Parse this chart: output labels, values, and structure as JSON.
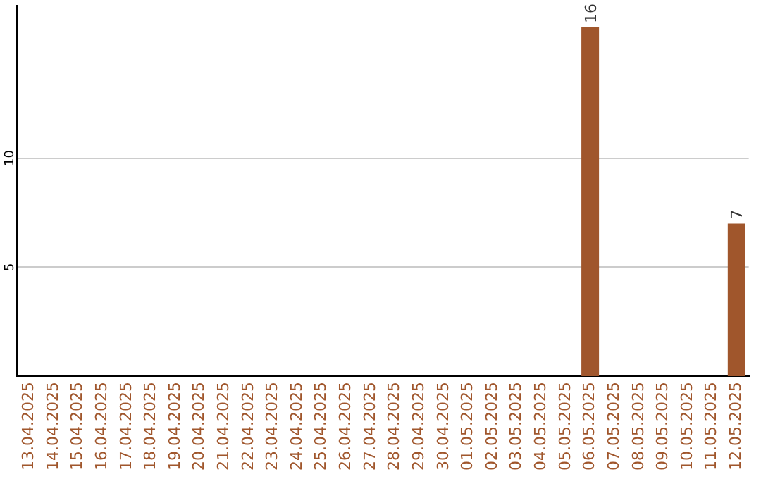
{
  "chart_data": {
    "type": "bar",
    "categories": [
      "13.04.2025",
      "14.04.2025",
      "15.04.2025",
      "16.04.2025",
      "17.04.2025",
      "18.04.2025",
      "19.04.2025",
      "20.04.2025",
      "21.04.2025",
      "22.04.2025",
      "23.04.2025",
      "24.04.2025",
      "25.04.2025",
      "26.04.2025",
      "27.04.2025",
      "28.04.2025",
      "29.04.2025",
      "30.04.2025",
      "01.05.2025",
      "02.05.2025",
      "03.05.2025",
      "04.05.2025",
      "05.05.2025",
      "06.05.2025",
      "07.05.2025",
      "08.05.2025",
      "09.05.2025",
      "10.05.2025",
      "11.05.2025",
      "12.05.2025"
    ],
    "series": [
      {
        "color": "#a0562c",
        "values": [
          0,
          0,
          0,
          0,
          0,
          0,
          0,
          0,
          0,
          0,
          0,
          0,
          0,
          0,
          0,
          0,
          0,
          0,
          0,
          0,
          0,
          0,
          0,
          16,
          0,
          0,
          0,
          0,
          0,
          7
        ],
        "value_labels": [
          null,
          null,
          null,
          null,
          null,
          null,
          null,
          null,
          null,
          null,
          null,
          null,
          null,
          null,
          null,
          null,
          null,
          null,
          null,
          null,
          null,
          null,
          null,
          "16",
          null,
          null,
          null,
          null,
          null,
          "7"
        ]
      }
    ],
    "ylim": [
      0,
      17
    ],
    "yticks": [
      5,
      10
    ],
    "grid": "y",
    "legend": false
  }
}
